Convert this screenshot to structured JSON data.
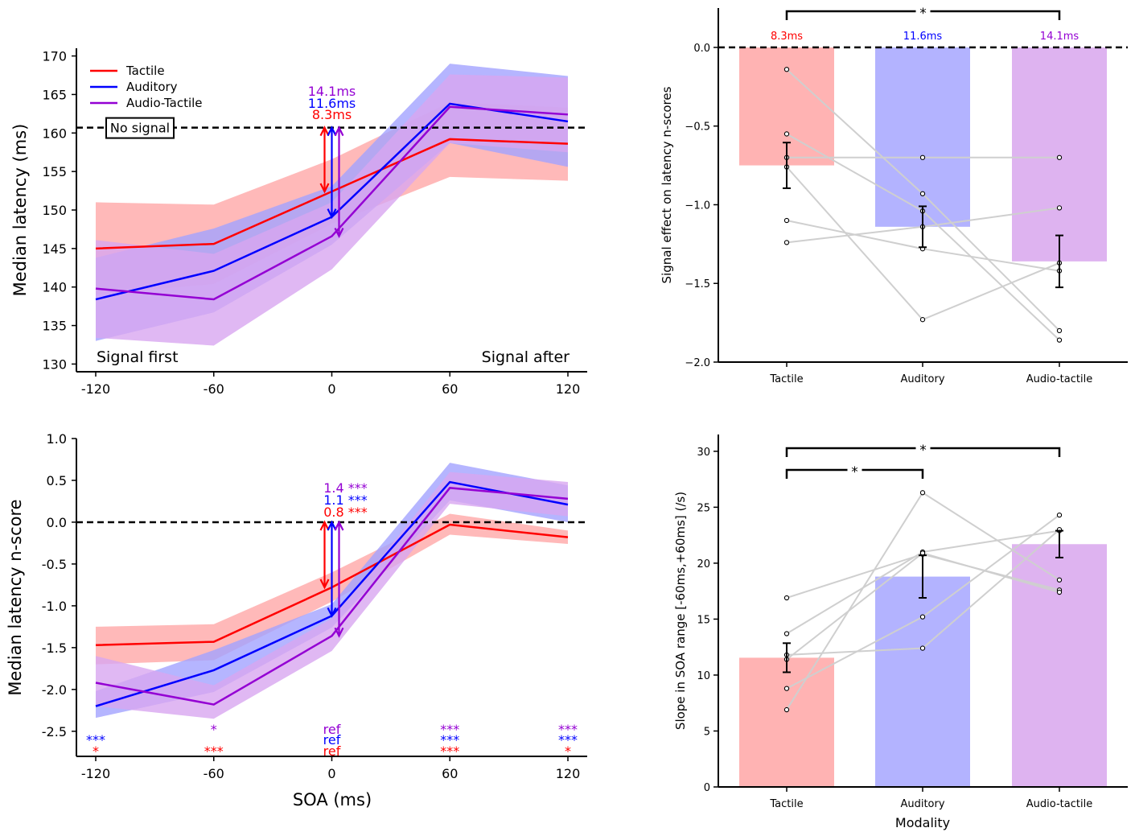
{
  "chart_data": [
    {
      "type": "line",
      "panel": "top-left",
      "title": "",
      "xlabel": "",
      "ylabel": "Median latency (ms)",
      "x": [
        -120,
        -60,
        0,
        60,
        120
      ],
      "x_tick_labels": [
        "-120",
        "-60",
        "0",
        "60",
        "120"
      ],
      "ylim": [
        129,
        171
      ],
      "y_ticks": [
        130,
        135,
        140,
        145,
        150,
        155,
        160,
        165,
        170
      ],
      "series": [
        {
          "name": "Tactile",
          "color": "#ff0000",
          "band_color": "#ffa8a8",
          "values": [
            145.0,
            145.6,
            152.4,
            159.2,
            158.6
          ],
          "lower": [
            139.0,
            140.4,
            148.2,
            154.3,
            153.8
          ],
          "upper": [
            151.0,
            150.7,
            156.6,
            164.0,
            163.3
          ]
        },
        {
          "name": "Auditory",
          "color": "#0000ff",
          "band_color": "#a3a3ff",
          "values": [
            138.4,
            142.1,
            149.1,
            163.8,
            161.5
          ],
          "lower": [
            133.0,
            136.7,
            145.5,
            158.7,
            155.6
          ],
          "upper": [
            143.8,
            147.6,
            153.1,
            169.0,
            167.4
          ]
        },
        {
          "name": "Audio-Tactile",
          "color": "#9400d3",
          "band_color": "#d8a6f0",
          "values": [
            139.8,
            138.4,
            146.6,
            163.4,
            162.4
          ],
          "lower": [
            133.4,
            132.4,
            142.3,
            158.7,
            157.5
          ],
          "upper": [
            146.1,
            144.3,
            151.0,
            167.6,
            167.2
          ]
        }
      ],
      "reference_line": {
        "value": 160.7,
        "label": "No signal",
        "style": "dashed"
      },
      "arrows": [
        {
          "series": "Tactile",
          "x": 0,
          "from": 160.7,
          "to": 152.4,
          "label": "8.3ms",
          "color": "#ff0000"
        },
        {
          "series": "Auditory",
          "x": 0,
          "from": 160.7,
          "to": 149.1,
          "label": "11.6ms",
          "color": "#0000ff"
        },
        {
          "series": "Audio-Tactile",
          "x": 0,
          "from": 160.7,
          "to": 146.6,
          "label": "14.1ms",
          "color": "#9400d3"
        }
      ],
      "annotations": [
        "Signal first",
        "Signal after"
      ],
      "legend": "top-left"
    },
    {
      "type": "line",
      "panel": "bottom-left",
      "title": "",
      "xlabel": "SOA (ms)",
      "ylabel": "Median latency n-score",
      "x": [
        -120,
        -60,
        0,
        60,
        120
      ],
      "x_tick_labels": [
        "-120",
        "-60",
        "0",
        "60",
        "120"
      ],
      "ylim": [
        -2.8,
        1.0
      ],
      "y_ticks": [
        -2.5,
        -2.0,
        -1.5,
        -1.0,
        -0.5,
        0.0,
        0.5,
        1.0
      ],
      "y_tick_labels": [
        "-2.5",
        "-2.0",
        "-1.5",
        "-1.0",
        "-0.5",
        "0.0",
        "0.5",
        "1.0"
      ],
      "series": [
        {
          "name": "Tactile",
          "color": "#ff0000",
          "band_color": "#ffa8a8",
          "values": [
            -1.47,
            -1.43,
            -0.78,
            -0.03,
            -0.18
          ],
          "lower": [
            -1.7,
            -1.65,
            -0.95,
            -0.15,
            -0.26
          ],
          "upper": [
            -1.25,
            -1.22,
            -0.6,
            0.1,
            -0.1
          ]
        },
        {
          "name": "Auditory",
          "color": "#0000ff",
          "band_color": "#a3a3ff",
          "values": [
            -2.2,
            -1.77,
            -1.12,
            0.48,
            0.21
          ],
          "lower": [
            -2.34,
            -2.03,
            -1.26,
            0.26,
            0.0
          ],
          "upper": [
            -2.02,
            -1.53,
            -0.98,
            0.71,
            0.44
          ]
        },
        {
          "name": "Audio-Tactile",
          "color": "#9400d3",
          "band_color": "#d8a6f0",
          "values": [
            -1.92,
            -2.18,
            -1.36,
            0.41,
            0.28
          ],
          "lower": [
            -2.2,
            -2.35,
            -1.54,
            0.22,
            0.07
          ],
          "upper": [
            -1.6,
            -1.95,
            -1.15,
            0.6,
            0.48
          ]
        }
      ],
      "reference_line": {
        "value": 0.0,
        "label": "",
        "style": "dashed"
      },
      "arrows": [
        {
          "series": "Tactile",
          "x": 0,
          "from": 0.0,
          "to": -0.78,
          "label": "0.8",
          "stars": "***",
          "color": "#ff0000"
        },
        {
          "series": "Auditory",
          "x": 0,
          "from": 0.0,
          "to": -1.12,
          "label": "1.1",
          "stars": "***",
          "color": "#0000ff"
        },
        {
          "series": "Audio-Tactile",
          "x": 0,
          "from": 0.0,
          "to": -1.36,
          "label": "1.4",
          "stars": "***",
          "color": "#9400d3"
        }
      ],
      "significance": {
        "Audio-Tactile": [
          "",
          "*",
          "ref",
          "***",
          "***"
        ],
        "Auditory": [
          "***",
          "",
          "ref",
          "***",
          "***"
        ],
        "Tactile": [
          "*",
          "***",
          "ref",
          "***",
          "*"
        ]
      }
    },
    {
      "type": "bar",
      "panel": "top-right",
      "title": "",
      "xlabel": "",
      "ylabel": "Signal effect on latency n-scores",
      "categories": [
        "Tactile",
        "Auditory",
        "Audio-tactile"
      ],
      "values": [
        -0.75,
        -1.14,
        -1.36
      ],
      "errors": [
        0.145,
        0.13,
        0.165
      ],
      "bar_colors": [
        "#ffb3b3",
        "#b3b3ff",
        "#deb3f0"
      ],
      "bar_labels": [
        "8.3ms",
        "11.6ms",
        "14.1ms"
      ],
      "bar_label_colors": [
        "#ff0000",
        "#0000ff",
        "#9400d3"
      ],
      "ylim": [
        -2.0,
        0.25
      ],
      "y_ticks": [
        -2.0,
        -1.5,
        -1.0,
        -0.5,
        0.0
      ],
      "y_tick_labels": [
        "−2.0",
        "−1.5",
        "−1.0",
        "−0.5",
        "0.0"
      ],
      "reference_line": {
        "value": 0.0,
        "style": "dashed"
      },
      "subject_lines": [
        [
          -0.14,
          -0.93,
          -1.8
        ],
        [
          -0.55,
          -1.04,
          -1.86
        ],
        [
          -0.7,
          -0.7,
          -0.7
        ],
        [
          -0.76,
          -1.73,
          -1.37
        ],
        [
          -1.1,
          -1.28,
          -1.42
        ],
        [
          -1.24,
          -1.14,
          -1.02
        ]
      ],
      "significance_brackets": [
        {
          "from": "Tactile",
          "to": "Audio-tactile",
          "label": "*"
        }
      ]
    },
    {
      "type": "bar",
      "panel": "bottom-right",
      "title": "",
      "xlabel": "Modality",
      "ylabel": "Slope in SOA range [-60ms,+60ms] (/s)",
      "categories": [
        "Tactile",
        "Auditory",
        "Audio-tactile"
      ],
      "values": [
        11.55,
        18.8,
        21.7
      ],
      "errors": [
        1.3,
        1.9,
        1.2
      ],
      "bar_colors": [
        "#ffb3b3",
        "#b3b3ff",
        "#deb3f0"
      ],
      "ylim": [
        0,
        31.5
      ],
      "y_ticks": [
        0,
        5,
        10,
        15,
        20,
        25,
        30
      ],
      "y_tick_labels": [
        "0",
        "5",
        "10",
        "15",
        "20",
        "25",
        "30"
      ],
      "subject_lines": [
        [
          16.9,
          20.8,
          17.6
        ],
        [
          13.7,
          21.0,
          22.9
        ],
        [
          11.8,
          12.4,
          23.0
        ],
        [
          11.4,
          20.9,
          17.4
        ],
        [
          8.8,
          15.2,
          24.3
        ],
        [
          6.9,
          26.3,
          18.5
        ]
      ],
      "significance_brackets": [
        {
          "from": "Tactile",
          "to": "Auditory",
          "label": "*"
        },
        {
          "from": "Tactile",
          "to": "Audio-tactile",
          "label": "*"
        }
      ]
    }
  ]
}
